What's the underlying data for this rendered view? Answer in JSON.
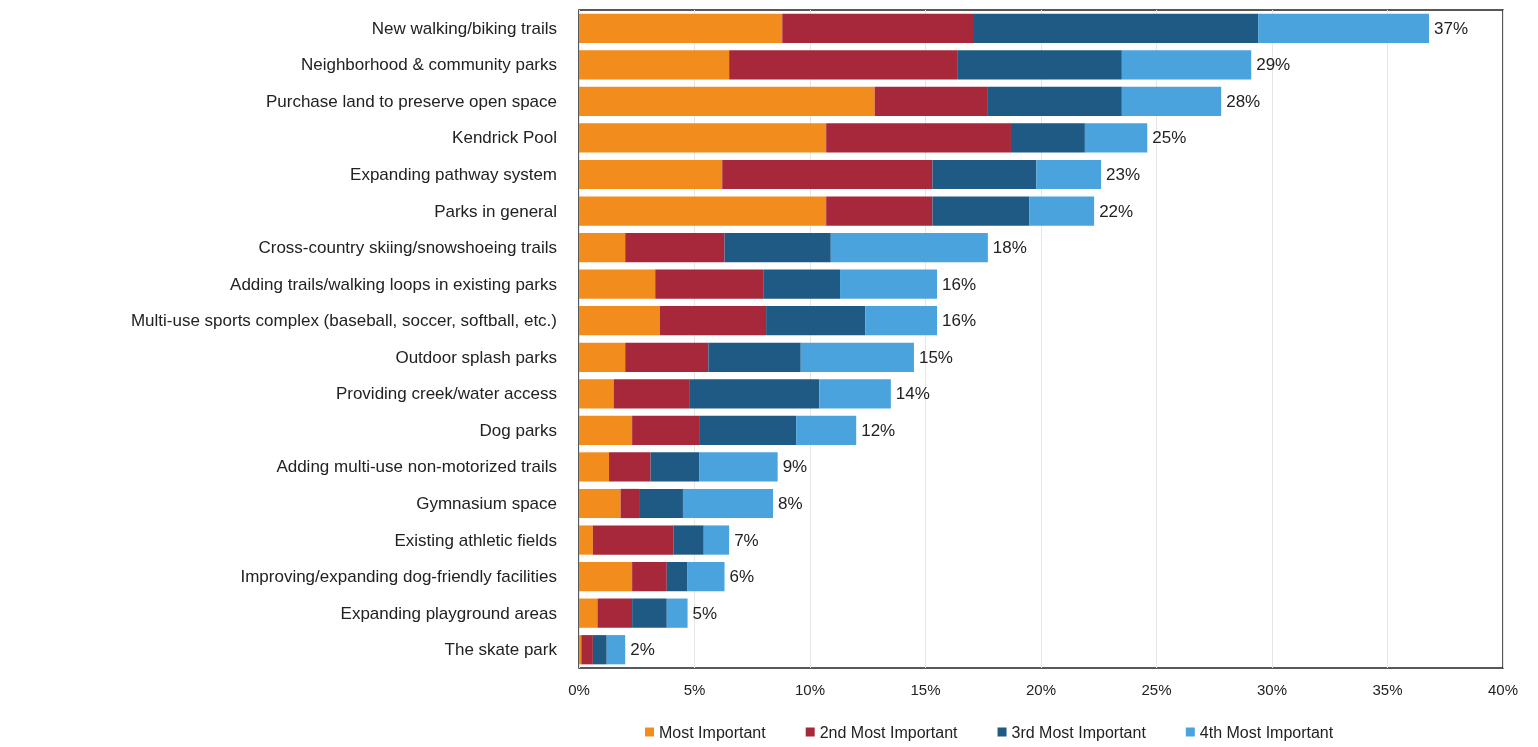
{
  "chart_data": {
    "type": "bar",
    "orientation": "horizontal",
    "stacked": true,
    "categories": [
      "New walking/biking trails",
      "Neighborhood & community parks",
      "Purchase land to preserve open space",
      "Kendrick Pool",
      "Expanding pathway system",
      "Parks in general",
      "Cross-country skiing/snowshoeing trails",
      "Adding trails/walking loops in existing parks",
      "Multi-use sports complex (baseball, soccer, softball, etc.)",
      "Outdoor splash parks",
      "Providing creek/water access",
      "Dog parks",
      "Adding multi-use non-motorized trails",
      "Gymnasium space",
      "Existing athletic fields",
      "Improving/expanding dog-friendly facilities",
      "Expanding playground areas",
      "The skate park"
    ],
    "series": [
      {
        "name": "Most Important",
        "color": "#f28c1c",
        "values": [
          8.8,
          6.5,
          12.8,
          10.7,
          6.2,
          10.7,
          2.0,
          3.3,
          3.5,
          2.0,
          1.5,
          2.3,
          1.3,
          1.8,
          0.6,
          2.3,
          0.8,
          0.1
        ]
      },
      {
        "name": "2nd Most Important",
        "color": "#a7283a",
        "values": [
          8.3,
          9.9,
          4.9,
          8.0,
          9.1,
          4.6,
          4.3,
          4.7,
          4.6,
          3.6,
          3.3,
          2.9,
          1.8,
          0.8,
          3.5,
          1.5,
          1.5,
          0.5
        ]
      },
      {
        "name": "3rd Most Important",
        "color": "#1f5a85",
        "values": [
          12.3,
          7.1,
          5.8,
          3.2,
          4.5,
          4.2,
          4.6,
          3.3,
          4.3,
          4.0,
          5.6,
          4.2,
          2.1,
          1.9,
          1.3,
          0.9,
          1.5,
          0.6
        ]
      },
      {
        "name": "4th Most Important",
        "color": "#4aa3dc",
        "values": [
          7.4,
          5.6,
          4.3,
          2.7,
          2.8,
          2.8,
          6.8,
          4.2,
          3.1,
          4.9,
          3.1,
          2.6,
          3.4,
          3.9,
          1.1,
          1.6,
          0.9,
          0.8
        ]
      }
    ],
    "totals": [
      "37%",
      "29%",
      "28%",
      "25%",
      "23%",
      "22%",
      "18%",
      "16%",
      "16%",
      "15%",
      "14%",
      "12%",
      "9%",
      "8%",
      "7%",
      "6%",
      "5%",
      "2%"
    ],
    "xlim": [
      0,
      40
    ],
    "xticks": [
      {
        "value": 0,
        "label": "0%"
      },
      {
        "value": 5,
        "label": "5%"
      },
      {
        "value": 10,
        "label": "10%"
      },
      {
        "value": 15,
        "label": "15%"
      },
      {
        "value": 20,
        "label": "20%"
      },
      {
        "value": 25,
        "label": "25%"
      },
      {
        "value": 30,
        "label": "30%"
      },
      {
        "value": 35,
        "label": "35%"
      },
      {
        "value": 40,
        "label": "40%"
      }
    ],
    "grid": "x",
    "legend": "bottom"
  }
}
